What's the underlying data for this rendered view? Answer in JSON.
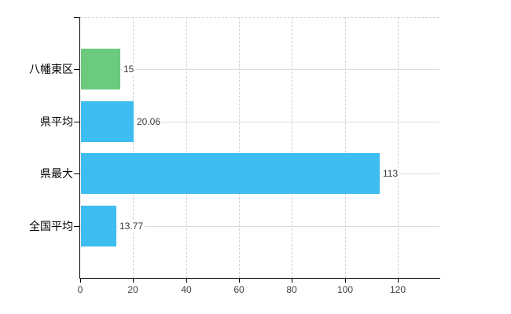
{
  "chart_data": {
    "type": "bar",
    "orientation": "horizontal",
    "title": "",
    "xlabel": "",
    "ylabel": "",
    "categories": [
      "八幡東区",
      "県平均",
      "県最大",
      "全国平均"
    ],
    "values": [
      15,
      20.06,
      113,
      13.77
    ],
    "value_labels": [
      "15",
      "20.06",
      "113",
      "13.77"
    ],
    "bar_colors": [
      "#6cca7f",
      "#3ebdf0",
      "#3ebdf0",
      "#3ebdf0"
    ],
    "x_ticks": [
      0,
      20,
      40,
      60,
      80,
      100,
      120
    ],
    "x_tick_labels": [
      "0",
      "20",
      "40",
      "60",
      "80",
      "100",
      "120"
    ],
    "xlim": [
      0,
      136
    ],
    "grid": {
      "vertical": "dashed",
      "horizontal_rows": "solid",
      "top_border": "dashed"
    },
    "legend": "none",
    "colors": {
      "axis": "#000000",
      "grid_dashed": "#d2d2d2",
      "grid_solid": "#dcdcdc",
      "value_text": "#3a3a3a",
      "tick_text": "#404040",
      "category_text": "#000000",
      "background": "#ffffff",
      "bar_green": "#6cca7f",
      "bar_blue": "#3ebdf0"
    }
  }
}
